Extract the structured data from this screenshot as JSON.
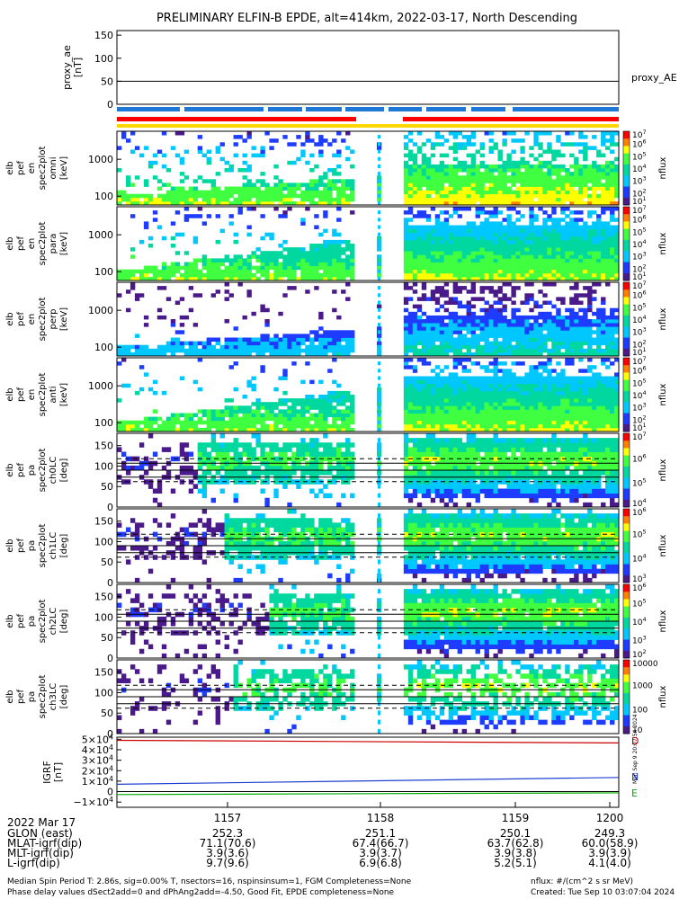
{
  "title": "PRELIMINARY ELFIN-B EPDE, alt=414km, 2022-03-17, North Descending",
  "colors": {
    "red_bar": "#ff0000",
    "blue_bar": "#1e78d4",
    "yellow_bar": "#ffd700",
    "grf_red": "#cc0000",
    "grf_blue": "#1f3fd0",
    "grf_green": "#00aa00"
  },
  "chart_data": [
    {
      "type": "line",
      "ylabel": [
        "proxy_ae",
        "[nT]"
      ],
      "yticks": [
        "150",
        "100",
        "50",
        "0"
      ],
      "ylim": [
        0,
        160
      ],
      "series": [
        {
          "name": "proxy_AE",
          "values": [
            50,
            50
          ]
        }
      ],
      "grid": false
    },
    {
      "type": "heatmap",
      "ylabel": [
        "elb",
        "pef",
        "en",
        "spec2plot",
        "omni",
        "[keV]"
      ],
      "yticks": [
        "1000",
        "100"
      ],
      "cb_label": "nflux",
      "cb_ticks": [
        "10^7",
        "10^6",
        "10^5",
        "10^4",
        "10^3",
        "10^2",
        "10^1"
      ],
      "cb_range": [
        1,
        7
      ]
    },
    {
      "type": "heatmap",
      "ylabel": [
        "elb",
        "pef",
        "en",
        "spec2plot",
        "para",
        "[keV]"
      ],
      "yticks": [
        "1000",
        "100"
      ],
      "cb_label": "nflux",
      "cb_ticks": [
        "10^7",
        "10^6",
        "10^5",
        "10^4",
        "10^3",
        "10^2",
        "10^1"
      ],
      "cb_range": [
        1,
        7
      ]
    },
    {
      "type": "heatmap",
      "ylabel": [
        "elb",
        "pef",
        "en",
        "spec2plot",
        "perp",
        "[keV]"
      ],
      "yticks": [
        "1000",
        "100"
      ],
      "cb_label": "nflux",
      "cb_ticks": [
        "10^7",
        "10^6",
        "10^5",
        "10^4",
        "10^3",
        "10^2",
        "10^1"
      ],
      "cb_range": [
        1,
        7
      ]
    },
    {
      "type": "heatmap",
      "ylabel": [
        "elb",
        "pef",
        "en",
        "spec2plot",
        "anti",
        "[keV]"
      ],
      "yticks": [
        "1000",
        "100"
      ],
      "cb_label": "nflux",
      "cb_ticks": [
        "10^7",
        "10^6",
        "10^5",
        "10^4",
        "10^3",
        "10^2",
        "10^1"
      ],
      "cb_range": [
        1,
        7
      ]
    },
    {
      "type": "heatmap",
      "ylabel": [
        "elb",
        "pef",
        "pa",
        "spec2plot",
        "ch0LC",
        "[deg]"
      ],
      "yticks": [
        "150",
        "100",
        "50",
        "0"
      ],
      "cb_label": "nflux",
      "cb_ticks": [
        "10^7",
        "10^6",
        "10^5",
        "10^4"
      ],
      "cb_range": [
        3.5,
        7
      ]
    },
    {
      "type": "heatmap",
      "ylabel": [
        "elb",
        "pef",
        "pa",
        "spec2plot",
        "ch1LC",
        "[deg]"
      ],
      "yticks": [
        "150",
        "100",
        "50",
        "0"
      ],
      "cb_label": "nflux",
      "cb_ticks": [
        "10^6",
        "10^5",
        "10^4",
        "10^3"
      ],
      "cb_range": [
        3,
        6.5
      ]
    },
    {
      "type": "heatmap",
      "ylabel": [
        "elb",
        "pef",
        "pa",
        "spec2plot",
        "ch2LC",
        "[deg]"
      ],
      "yticks": [
        "150",
        "100",
        "50",
        "0"
      ],
      "cb_label": "nflux",
      "cb_ticks": [
        "10^6",
        "10^5",
        "10^4",
        "10^3",
        "10^2"
      ],
      "cb_range": [
        2,
        6
      ]
    },
    {
      "type": "heatmap",
      "ylabel": [
        "elb",
        "pef",
        "pa",
        "spec2plot",
        "ch3LC",
        "[deg]"
      ],
      "yticks": [
        "150",
        "100",
        "50",
        "0"
      ],
      "cb_label": "nflux",
      "cb_ticks": [
        "10000",
        "1000",
        "100",
        "10"
      ],
      "cb_range": [
        1,
        4
      ]
    },
    {
      "type": "line",
      "ylabel": [
        "IGRF",
        "[nT]"
      ],
      "yticks": [
        "5×10^4",
        "4×10^4",
        "3×10^4",
        "2×10^4",
        "1×10^4",
        "0",
        "−1×10^4"
      ],
      "ylim": [
        -15000,
        52000
      ],
      "series": [
        {
          "name": "D",
          "values": [
            49000,
            46500
          ]
        },
        {
          "name": "N",
          "values": [
            7000,
            13500
          ]
        },
        {
          "name": "E",
          "values": [
            -2800,
            -1200
          ]
        }
      ]
    }
  ],
  "time_labels": [
    "1157",
    "1158",
    "1159",
    "1200"
  ],
  "sidebar_stamp": "Mon Sep  9 20:07:54 2024",
  "footer": {
    "date": "2022 Mar 17",
    "rows": [
      {
        "label": "GLON (east)",
        "values": [
          "252.3",
          "251.1",
          "250.1",
          "249.3"
        ]
      },
      {
        "label": "MLAT-igrf(dip)",
        "values": [
          "71.1(70.6)",
          "67.4(66.7)",
          "63.7(62.8)",
          "60.0(58.9)"
        ]
      },
      {
        "label": "MLT-igrf(dip)",
        "values": [
          "3.9(3.6)",
          "3.9(3.7)",
          "3.9(3.8)",
          "3.9(3.9)"
        ]
      },
      {
        "label": "L-igrf(dip)",
        "values": [
          "9.7(9.6)",
          "6.9(6.8)",
          "5.2(5.1)",
          "4.1(4.0)"
        ]
      }
    ],
    "note1": "Median Spin Period T: 2.86s, sig=0.00% T, nsectors=16, nspinsinsum=1, FGM Completeness=None",
    "note2": "Phase delay values dSect2add=0 and dPhAng2add=-4.50, Good Fit, EPDE completeness=None",
    "units": "nflux: #/(cm^2 s sr MeV)",
    "created": "Created: Tue Sep 10 03:07:04 2024"
  }
}
